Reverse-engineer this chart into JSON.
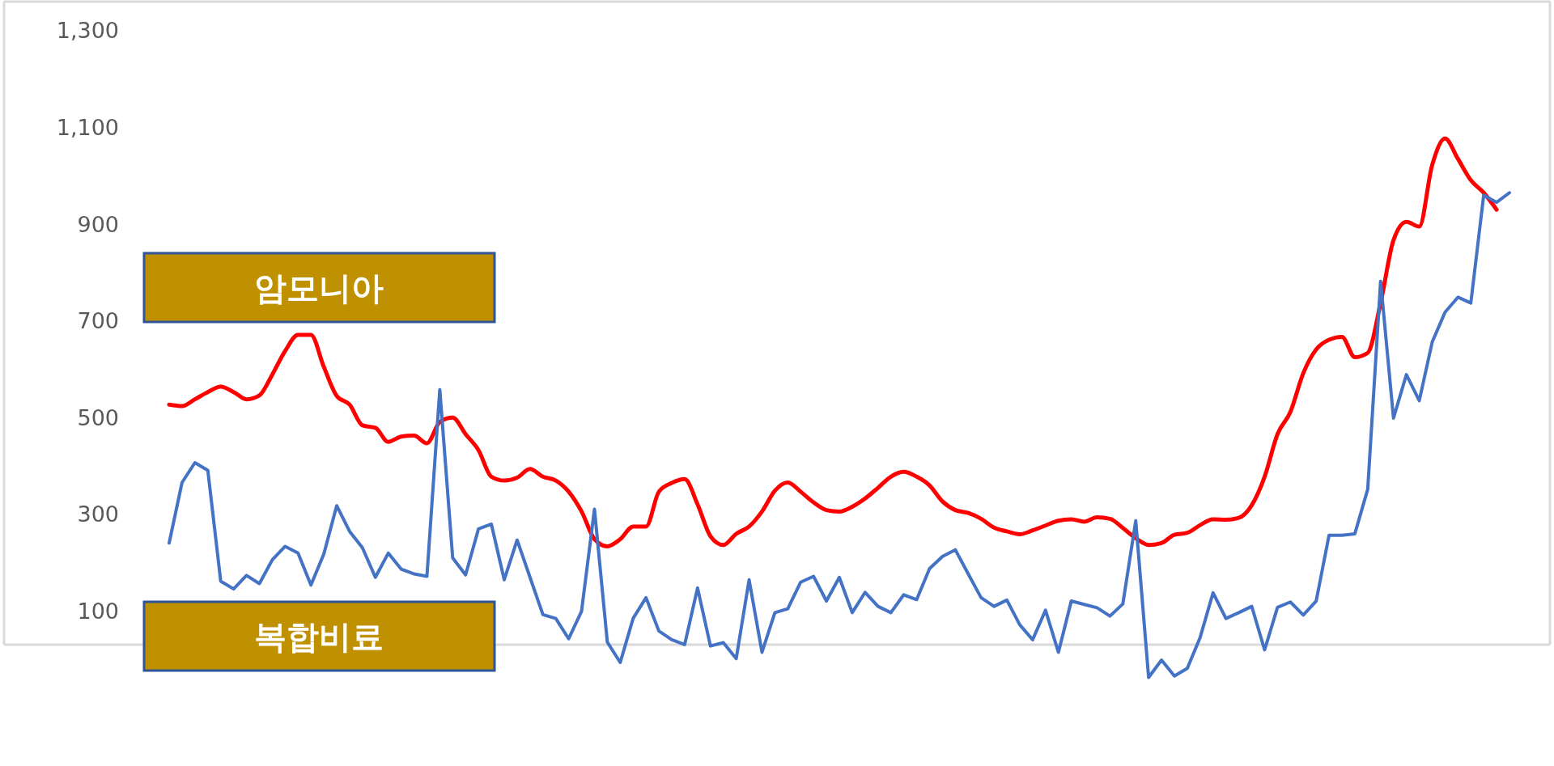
{
  "chart_data": {
    "type": "line",
    "categories": [
      null,
      null,
      null,
      null,
      null,
      null,
      null,
      null,
      null,
      null,
      null,
      null,
      null,
      null,
      null,
      null,
      null,
      null,
      null,
      null,
      null,
      null,
      null,
      null,
      null,
      null,
      null,
      null,
      null,
      null,
      null,
      null,
      null,
      null,
      null,
      null,
      null,
      null,
      null,
      null,
      null,
      null,
      null,
      null,
      null,
      null,
      null,
      null,
      null,
      null,
      null,
      null,
      null,
      null,
      null,
      null,
      null,
      null,
      null,
      null,
      null,
      null,
      null,
      null,
      null,
      null,
      null,
      null,
      null,
      null,
      null,
      null,
      null,
      null,
      null,
      null,
      null,
      null,
      null,
      null,
      null,
      null,
      null,
      null,
      null,
      null,
      null,
      null,
      null,
      null,
      null,
      null,
      null,
      null,
      null,
      null,
      null,
      null,
      null,
      null,
      null,
      null,
      null,
      null,
      null
    ],
    "series": [
      {
        "name": "암모니아",
        "color": "#ff0000",
        "values": [
          527,
          524,
          538,
          553,
          564,
          553,
          538,
          546,
          589,
          638,
          671,
          671,
          605,
          545,
          527,
          484,
          479,
          450,
          461,
          463,
          447,
          491,
          500,
          466,
          433,
          378,
          370,
          376,
          394,
          378,
          370,
          347,
          306,
          249,
          234,
          249,
          275,
          275,
          347,
          365,
          373,
          321,
          255,
          237,
          260,
          275,
          306,
          349,
          366,
          347,
          325,
          309,
          306,
          316,
          333,
          355,
          378,
          388,
          378,
          360,
          327,
          309,
          303,
          291,
          273,
          265,
          259,
          267,
          277,
          287,
          290,
          285,
          294,
          291,
          272,
          251,
          237,
          241,
          258,
          262,
          278,
          290,
          289,
          293,
          319,
          378,
          466,
          512,
          592,
          641,
          661,
          667,
          625,
          634,
          737,
          867,
          905,
          895,
          1022,
          1077,
          1035,
          991,
          965,
          930,
          null
        ]
      },
      {
        "name": "복합비료",
        "color": "#4472c4",
        "values": [
          241,
          366,
          407,
          391,
          162,
          146,
          174,
          157,
          206,
          234,
          220,
          154,
          218,
          318,
          265,
          231,
          170,
          220,
          187,
          177,
          172,
          558,
          210,
          175,
          270,
          280,
          165,
          247,
          170,
          93,
          85,
          43,
          100,
          311,
          36,
          -6,
          85,
          128,
          59,
          41,
          31,
          148,
          28,
          35,
          2,
          165,
          15,
          97,
          105,
          160,
          172,
          121,
          170,
          97,
          139,
          110,
          97,
          134,
          124,
          188,
          213,
          227,
          177,
          128,
          110,
          123,
          72,
          41,
          102,
          15,
          121,
          114,
          107,
          90,
          115,
          287,
          -37,
          -1,
          -34,
          -18,
          46,
          138,
          85,
          97,
          110,
          20,
          108,
          119,
          92,
          121,
          257,
          257,
          260,
          352,
          782,
          499,
          589,
          535,
          656,
          718,
          749,
          737,
          960,
          945,
          965
        ]
      }
    ],
    "ylim": [
      -220,
      1360
    ],
    "yticks": [
      {
        "value": 100,
        "label": "100"
      },
      {
        "value": 300,
        "label": "300"
      },
      {
        "value": 500,
        "label": "500"
      },
      {
        "value": 700,
        "label": "700"
      },
      {
        "value": 900,
        "label": "900"
      },
      {
        "value": 1100,
        "label": "1,100"
      },
      {
        "value": 1300,
        "label": "1,300"
      }
    ],
    "ref_lines": [
      {
        "axis": "y",
        "value": 31,
        "label": null,
        "color": "#d9d9d9"
      }
    ],
    "grid": false,
    "marker": "none",
    "line_style": "solid"
  }
}
